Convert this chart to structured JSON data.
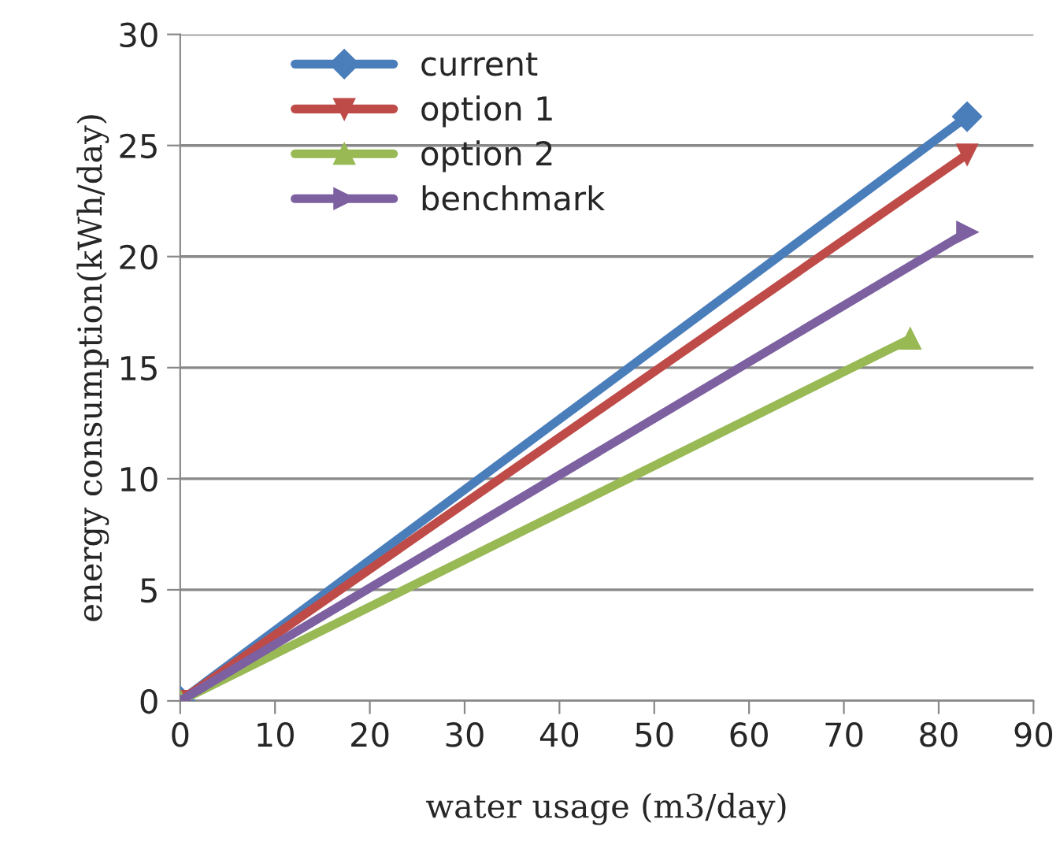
{
  "chart_data": {
    "type": "line",
    "xlabel": "water usage (m3/day)",
    "ylabel": "energy consumption(kWh/day)",
    "xlim": [
      0,
      90
    ],
    "xticks": [
      0,
      10,
      20,
      30,
      40,
      50,
      60,
      70,
      80,
      90
    ],
    "ylim": [
      0,
      30
    ],
    "yticks": [
      0,
      5,
      10,
      15,
      20,
      25,
      30
    ],
    "grid": "y",
    "legend": "top left",
    "series": [
      {
        "name": "current",
        "color": "#4a7ebb",
        "marker": "diamond",
        "x": [
          0,
          83
        ],
        "values": [
          0,
          26.3
        ]
      },
      {
        "name": "option 1",
        "color": "#be4b48",
        "marker": "triangle_down",
        "x": [
          0,
          83
        ],
        "values": [
          0,
          24.6
        ]
      },
      {
        "name": "option 2",
        "color": "#98b954",
        "marker": "triangle",
        "x": [
          0,
          77
        ],
        "values": [
          0,
          16.3
        ]
      },
      {
        "name": "benchmark",
        "color": "#7d60a0",
        "marker": "triangle_right",
        "x": [
          0,
          83
        ],
        "values": [
          0,
          21.1
        ]
      }
    ]
  }
}
